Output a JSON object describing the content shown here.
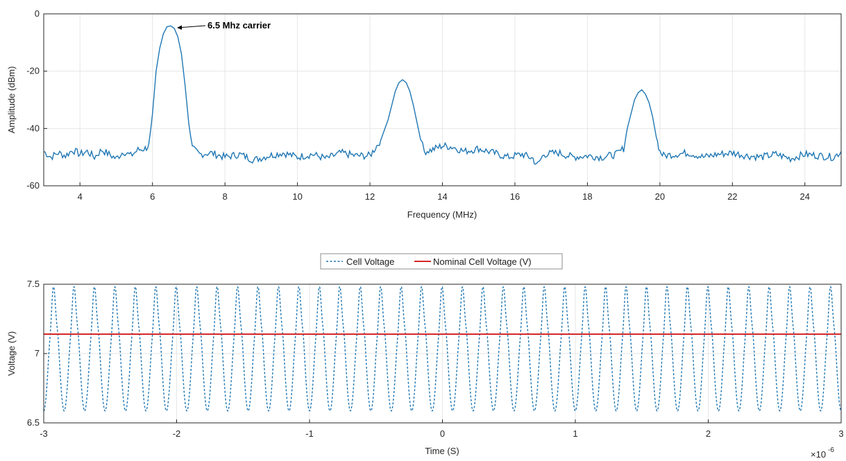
{
  "chart_data": [
    {
      "type": "line",
      "xlabel": "Frequency (MHz)",
      "ylabel": "Amplitude (dBm)",
      "xlim": [
        3,
        25
      ],
      "ylim": [
        -60,
        0
      ],
      "xticks": [
        4,
        6,
        8,
        10,
        12,
        14,
        16,
        18,
        20,
        22,
        24
      ],
      "yticks": [
        -60,
        -40,
        -20,
        0
      ],
      "grid": true,
      "line_color": "#1f77b4",
      "noise_floor": -49.5,
      "x": [
        3,
        3.2,
        3.4,
        3.6,
        3.8,
        4,
        4.2,
        4.4,
        4.6,
        4.8,
        5,
        5.2,
        5.4,
        5.6,
        5.8,
        5.9,
        6.0,
        6.1,
        6.2,
        6.3,
        6.4,
        6.5,
        6.6,
        6.7,
        6.8,
        6.9,
        7.0,
        7.1,
        7.3,
        7.6,
        8,
        8.4,
        8.8,
        9.2,
        9.6,
        10,
        10.4,
        10.8,
        11.2,
        11.6,
        12,
        12.3,
        12.5,
        12.6,
        12.7,
        12.8,
        12.9,
        13.0,
        13.1,
        13.2,
        13.3,
        13.4,
        13.5,
        13.7,
        14,
        14.3,
        14.6,
        15,
        15.4,
        15.8,
        16.2,
        16.5,
        16.6,
        16.8,
        17.2,
        17.6,
        18,
        18.4,
        18.8,
        19.0,
        19.1,
        19.2,
        19.3,
        19.4,
        19.5,
        19.6,
        19.7,
        19.8,
        19.9,
        20.0,
        20.1,
        20.4,
        20.8,
        21.2,
        21.6,
        22,
        22.4,
        22.8,
        23.2,
        23.6,
        24,
        24.4,
        24.8,
        25
      ],
      "y": [
        -48,
        -50,
        -48.5,
        -49.5,
        -47.5,
        -49,
        -48,
        -50,
        -47.5,
        -49,
        -50.5,
        -48,
        -49.5,
        -47.5,
        -47,
        -46,
        -35,
        -20,
        -12,
        -7,
        -4.5,
        -4.2,
        -5,
        -8,
        -14,
        -25,
        -38,
        -47,
        -49,
        -48.5,
        -50,
        -49,
        -51,
        -49.5,
        -48.5,
        -50,
        -49,
        -50.5,
        -48.5,
        -49.5,
        -49.5,
        -44,
        -37,
        -32,
        -27,
        -24,
        -23,
        -24,
        -27,
        -32,
        -38,
        -44,
        -48,
        -47.5,
        -46,
        -46.5,
        -48,
        -47,
        -48.5,
        -50,
        -49,
        -50.5,
        -53,
        -49,
        -48.5,
        -50,
        -49.5,
        -50,
        -49,
        -47,
        -40,
        -35,
        -30,
        -27.5,
        -26.5,
        -28,
        -31,
        -36,
        -43,
        -48,
        -49.5,
        -49,
        -48.5,
        -50,
        -49,
        -48.5,
        -49.5,
        -50,
        -49,
        -50.5,
        -49,
        -49.5,
        -50,
        -48
      ],
      "annotations": [
        {
          "text": "6.5 Mhz carrier",
          "x": 6.5,
          "y": -4.5
        }
      ]
    },
    {
      "type": "line",
      "xlabel": "Time (S)",
      "ylabel": "Voltage (V)",
      "xlim": [
        -3,
        3
      ],
      "ylim": [
        6.5,
        7.5
      ],
      "xticks": [
        -3,
        -2,
        -1,
        0,
        1,
        2,
        3
      ],
      "yticks": [
        6.5,
        7,
        7.5
      ],
      "x_exponent_base": "×10",
      "x_exponent_power": "-6",
      "grid": true,
      "series": [
        {
          "name": "Cell Voltage",
          "style": "dashed",
          "color": "#1f77b4",
          "waveform": {
            "frequency_mhz": 6.5,
            "mean": 7.0,
            "min": 6.55,
            "max": 7.45
          }
        },
        {
          "name": "Nominal Cell Voltage  (V)",
          "style": "solid",
          "color": "#d62728",
          "x": [
            -3,
            3
          ],
          "y": [
            7.14,
            7.14
          ]
        }
      ]
    }
  ]
}
